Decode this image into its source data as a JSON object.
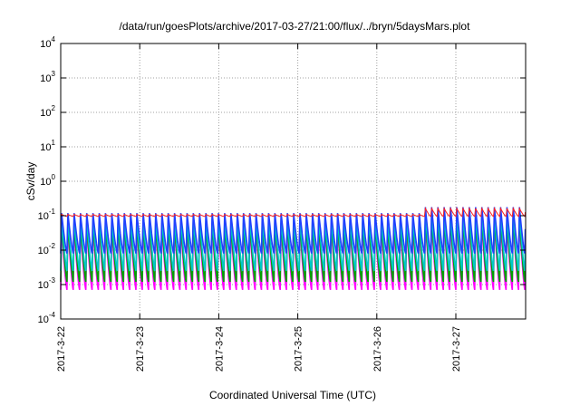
{
  "chart_data": {
    "type": "line",
    "title": "/data/run/goesPlots/archive/2017-03-27/21:00/flux/../bryn/5daysMars.plot",
    "xlabel": "Coordinated Universal Time (UTC)",
    "ylabel": "cSv/day",
    "y_scale": "log",
    "ylim": [
      0.0001,
      10000
    ],
    "y_ticks": [
      {
        "value": 0.0001,
        "base": "10",
        "exp": "-4"
      },
      {
        "value": 0.001,
        "base": "10",
        "exp": "-3"
      },
      {
        "value": 0.01,
        "base": "10",
        "exp": "-2"
      },
      {
        "value": 0.1,
        "base": "10",
        "exp": "-1"
      },
      {
        "value": 1,
        "base": "10",
        "exp": "0"
      },
      {
        "value": 10,
        "base": "10",
        "exp": "1"
      },
      {
        "value": 100,
        "base": "10",
        "exp": "2"
      },
      {
        "value": 1000,
        "base": "10",
        "exp": "3"
      },
      {
        "value": 10000,
        "base": "10",
        "exp": "4"
      }
    ],
    "x_ticks": [
      "2017-3-22",
      "2017-3-23",
      "2017-3-24",
      "2017-3-25",
      "2017-3-26",
      "2017-3-27"
    ],
    "xlim_days": [
      0,
      6.0
    ],
    "grid": true,
    "legend": "none",
    "cycles_per_day": 12.6,
    "series": [
      {
        "color": "#ff00ff",
        "peak": 0.05,
        "trough": 0.0007
      },
      {
        "color": "#00a000",
        "peak": 0.07,
        "trough": 0.0012
      },
      {
        "color": "#00c8c8",
        "peak": 0.09,
        "trough": 0.0025
      },
      {
        "color": "#2040ff",
        "peak": 0.13,
        "trough": 0.008
      },
      {
        "color": "#ff2020",
        "peak": 0.11,
        "trough": 0.095
      }
    ]
  }
}
